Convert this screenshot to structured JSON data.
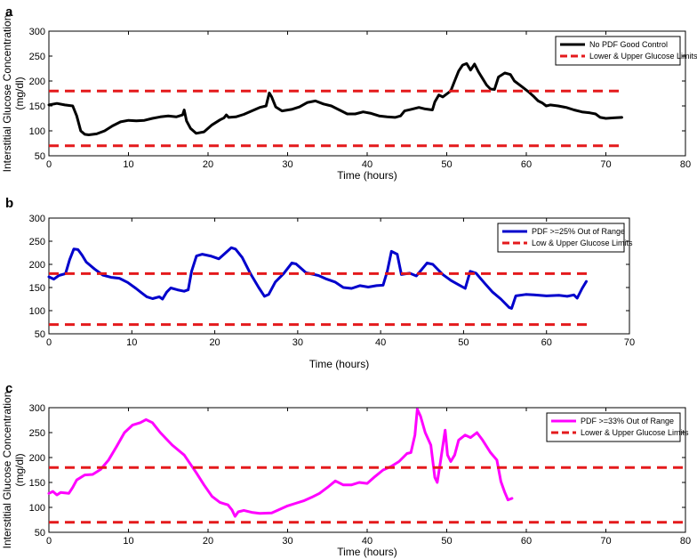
{
  "chart_data": [
    {
      "panel": "a",
      "type": "line",
      "xlabel": "Time (hours)",
      "ylabel": [
        "Interstitial Glucose Concentration",
        "(mg/dl)"
      ],
      "xlim": [
        0,
        80
      ],
      "ylim": [
        50,
        300
      ],
      "xticks": [
        0,
        10,
        20,
        30,
        40,
        50,
        60,
        70,
        80
      ],
      "yticks": [
        50,
        100,
        150,
        200,
        250,
        300
      ],
      "legend_position": "top-right",
      "series": [
        {
          "name": "No PDF Good Control",
          "color": "#000000",
          "style": "solid",
          "points": [
            [
              0,
              152
            ],
            [
              1,
              155
            ],
            [
              2,
              152
            ],
            [
              3,
              150
            ],
            [
              3.5,
              130
            ],
            [
              4,
              100
            ],
            [
              4.5,
              93
            ],
            [
              5,
              92
            ],
            [
              6,
              94
            ],
            [
              7,
              100
            ],
            [
              8,
              110
            ],
            [
              9,
              118
            ],
            [
              10,
              121
            ],
            [
              11,
              120
            ],
            [
              12,
              121
            ],
            [
              13,
              125
            ],
            [
              14,
              128
            ],
            [
              15,
              130
            ],
            [
              16,
              128
            ],
            [
              16.8,
              132
            ],
            [
              17,
              142
            ],
            [
              17.3,
              120
            ],
            [
              17.8,
              105
            ],
            [
              18.5,
              95
            ],
            [
              19.5,
              98
            ],
            [
              20.5,
              112
            ],
            [
              21.5,
              122
            ],
            [
              22,
              126
            ],
            [
              22.3,
              132
            ],
            [
              22.6,
              127
            ],
            [
              23.5,
              128
            ],
            [
              24.5,
              133
            ],
            [
              25.5,
              140
            ],
            [
              26.5,
              147
            ],
            [
              27.3,
              150
            ],
            [
              27.7,
              176
            ],
            [
              28,
              168
            ],
            [
              28.5,
              148
            ],
            [
              29.3,
              140
            ],
            [
              30.5,
              143
            ],
            [
              31.5,
              148
            ],
            [
              32.5,
              157
            ],
            [
              33.5,
              160
            ],
            [
              34.5,
              154
            ],
            [
              35.5,
              150
            ],
            [
              36.5,
              142
            ],
            [
              37.5,
              134
            ],
            [
              38.5,
              134
            ],
            [
              39.5,
              138
            ],
            [
              40.5,
              135
            ],
            [
              41.5,
              130
            ],
            [
              42.5,
              128
            ],
            [
              43.5,
              127
            ],
            [
              44.2,
              130
            ],
            [
              44.7,
              140
            ],
            [
              45.5,
              143
            ],
            [
              46.5,
              147
            ],
            [
              47.3,
              144
            ],
            [
              48.2,
              142
            ],
            [
              48.5,
              158
            ],
            [
              49,
              172
            ],
            [
              49.5,
              168
            ],
            [
              50.5,
              180
            ],
            [
              51,
              200
            ],
            [
              51.5,
              220
            ],
            [
              52,
              232
            ],
            [
              52.5,
              235
            ],
            [
              53,
              222
            ],
            [
              53.5,
              234
            ],
            [
              54,
              218
            ],
            [
              54.5,
              205
            ],
            [
              55,
              192
            ],
            [
              55.5,
              184
            ],
            [
              56,
              183
            ],
            [
              56.5,
              208
            ],
            [
              57.3,
              216
            ],
            [
              58,
              213
            ],
            [
              58.5,
              200
            ],
            [
              59.5,
              188
            ],
            [
              60.3,
              178
            ],
            [
              61,
              168
            ],
            [
              61.5,
              160
            ],
            [
              62,
              156
            ],
            [
              62.5,
              150
            ],
            [
              63,
              152
            ],
            [
              64,
              150
            ],
            [
              65,
              147
            ],
            [
              66,
              142
            ],
            [
              67,
              138
            ],
            [
              68,
              136
            ],
            [
              68.7,
              134
            ],
            [
              69.3,
              127
            ],
            [
              70,
              125
            ],
            [
              71,
              126
            ],
            [
              72,
              127
            ]
          ]
        },
        {
          "name": "Lower & Upper Glucose Limits",
          "color": "#e41a1c",
          "style": "dashed",
          "levels": [
            70,
            180
          ],
          "x_range": [
            0,
            72
          ]
        }
      ]
    },
    {
      "panel": "b",
      "type": "line",
      "xlabel": "Time (hours)",
      "ylabel": [],
      "xlim": [
        0,
        70
      ],
      "ylim": [
        50,
        300
      ],
      "xticks": [
        0,
        10,
        20,
        30,
        40,
        50,
        60,
        70
      ],
      "yticks": [
        50,
        100,
        150,
        200,
        250,
        300
      ],
      "legend_position": "top-right",
      "series": [
        {
          "name": "PDF >=25% Out of Range",
          "color": "#0000cc",
          "style": "solid",
          "points": [
            [
              0,
              173
            ],
            [
              0.6,
              168
            ],
            [
              1.2,
              176
            ],
            [
              2,
              180
            ],
            [
              2.5,
              210
            ],
            [
              3,
              233
            ],
            [
              3.5,
              232
            ],
            [
              4,
              220
            ],
            [
              4.5,
              205
            ],
            [
              5.5,
              190
            ],
            [
              6.5,
              177
            ],
            [
              7.5,
              172
            ],
            [
              8.5,
              170
            ],
            [
              9.5,
              161
            ],
            [
              10.5,
              148
            ],
            [
              11.2,
              138
            ],
            [
              11.8,
              130
            ],
            [
              12.5,
              126
            ],
            [
              13.3,
              130
            ],
            [
              13.7,
              125
            ],
            [
              14.2,
              140
            ],
            [
              14.7,
              149
            ],
            [
              15.5,
              145
            ],
            [
              16.3,
              142
            ],
            [
              16.8,
              145
            ],
            [
              17.2,
              185
            ],
            [
              17.8,
              218
            ],
            [
              18.5,
              222
            ],
            [
              19.5,
              218
            ],
            [
              20.5,
              212
            ],
            [
              21,
              220
            ],
            [
              22,
              236
            ],
            [
              22.5,
              233
            ],
            [
              23.3,
              215
            ],
            [
              24.3,
              180
            ],
            [
              25.3,
              150
            ],
            [
              26,
              131
            ],
            [
              26.5,
              135
            ],
            [
              27.3,
              162
            ],
            [
              28.3,
              180
            ],
            [
              29.3,
              203
            ],
            [
              29.8,
              201
            ],
            [
              31,
              182
            ],
            [
              32.5,
              176
            ],
            [
              33.5,
              168
            ],
            [
              34.5,
              162
            ],
            [
              35.5,
              150
            ],
            [
              36.5,
              148
            ],
            [
              37.5,
              154
            ],
            [
              38.5,
              151
            ],
            [
              39.5,
              154
            ],
            [
              40.3,
              155
            ],
            [
              40.8,
              185
            ],
            [
              41.3,
              228
            ],
            [
              42,
              222
            ],
            [
              42.5,
              178
            ],
            [
              43.5,
              181
            ],
            [
              44.3,
              175
            ],
            [
              45,
              190
            ],
            [
              45.6,
              203
            ],
            [
              46.3,
              200
            ],
            [
              47.5,
              178
            ],
            [
              48.5,
              165
            ],
            [
              49.5,
              155
            ],
            [
              50.2,
              148
            ],
            [
              50.8,
              185
            ],
            [
              51.5,
              181
            ],
            [
              52.5,
              160
            ],
            [
              53.5,
              140
            ],
            [
              54.5,
              125
            ],
            [
              55.5,
              107
            ],
            [
              55.8,
              105
            ],
            [
              56.3,
              132
            ],
            [
              57.5,
              135
            ],
            [
              58.5,
              134
            ],
            [
              60,
              132
            ],
            [
              61.5,
              133
            ],
            [
              62.5,
              131
            ],
            [
              63.3,
              134
            ],
            [
              63.7,
              127
            ],
            [
              64.3,
              148
            ],
            [
              64.8,
              163
            ]
          ]
        },
        {
          "name": "Low & Upper Glucose Limits",
          "color": "#e41a1c",
          "style": "dashed",
          "levels": [
            70,
            180
          ],
          "x_range": [
            0,
            65
          ]
        }
      ]
    },
    {
      "panel": "c",
      "type": "line",
      "xlabel": "Time (hours)",
      "ylabel": [
        "Interstitial Glucose Concentration",
        "(mg/dl)"
      ],
      "xlim": [
        0,
        80
      ],
      "ylim": [
        50,
        300
      ],
      "xticks": [
        0,
        10,
        20,
        30,
        40,
        50,
        60,
        70,
        80
      ],
      "yticks": [
        50,
        100,
        150,
        200,
        250,
        300
      ],
      "legend_position": "top-right",
      "series": [
        {
          "name": "PDF >=33% Out of Range",
          "color": "#ff00ff",
          "style": "solid",
          "points": [
            [
              0,
              128
            ],
            [
              0.5,
              132
            ],
            [
              1,
              125
            ],
            [
              1.5,
              130
            ],
            [
              2.5,
              128
            ],
            [
              3,
              140
            ],
            [
              3.5,
              155
            ],
            [
              4.5,
              165
            ],
            [
              5.5,
              166
            ],
            [
              6.5,
              176
            ],
            [
              7.5,
              195
            ],
            [
              8.5,
              222
            ],
            [
              9.5,
              250
            ],
            [
              10.5,
              265
            ],
            [
              11.5,
              270
            ],
            [
              12.2,
              276
            ],
            [
              13,
              270
            ],
            [
              14,
              250
            ],
            [
              15.5,
              225
            ],
            [
              17,
              205
            ],
            [
              18.5,
              170
            ],
            [
              19.5,
              145
            ],
            [
              20.5,
              122
            ],
            [
              21.5,
              110
            ],
            [
              22.5,
              105
            ],
            [
              23,
              95
            ],
            [
              23.4,
              82
            ],
            [
              23.8,
              91
            ],
            [
              24.5,
              94
            ],
            [
              25.5,
              90
            ],
            [
              26.5,
              88
            ],
            [
              28,
              89
            ],
            [
              29,
              96
            ],
            [
              30,
              103
            ],
            [
              31,
              108
            ],
            [
              32,
              113
            ],
            [
              33,
              120
            ],
            [
              34,
              128
            ],
            [
              35,
              140
            ],
            [
              36,
              153
            ],
            [
              37,
              145
            ],
            [
              38,
              145
            ],
            [
              39,
              150
            ],
            [
              40,
              148
            ],
            [
              41,
              162
            ],
            [
              42,
              175
            ],
            [
              43,
              182
            ],
            [
              44,
              192
            ],
            [
              45,
              208
            ],
            [
              45.5,
              210
            ],
            [
              46,
              245
            ],
            [
              46.3,
              297
            ],
            [
              46.7,
              283
            ],
            [
              47.3,
              250
            ],
            [
              48,
              225
            ],
            [
              48.5,
              160
            ],
            [
              48.8,
              150
            ],
            [
              49.2,
              190
            ],
            [
              49.8,
              255
            ],
            [
              50.1,
              205
            ],
            [
              50.5,
              192
            ],
            [
              51,
              205
            ],
            [
              51.5,
              235
            ],
            [
              52.3,
              245
            ],
            [
              53,
              240
            ],
            [
              53.8,
              250
            ],
            [
              54.5,
              235
            ],
            [
              55.5,
              210
            ],
            [
              56.3,
              195
            ],
            [
              56.8,
              152
            ],
            [
              57.3,
              130
            ],
            [
              57.7,
              115
            ],
            [
              58.2,
              118
            ]
          ]
        },
        {
          "name": "Lower & Upper Glucose Limits",
          "color": "#e41a1c",
          "style": "dashed",
          "levels": [
            70,
            180
          ],
          "x_range": [
            0,
            80
          ]
        }
      ]
    }
  ]
}
